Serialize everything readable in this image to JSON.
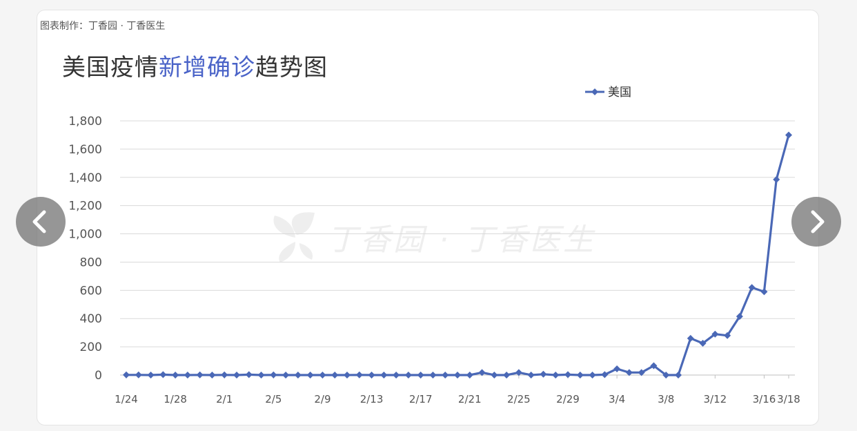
{
  "header": {
    "credit": "图表制作：丁香园 · 丁香医生",
    "title_part1": "美国疫情",
    "title_highlight": "新增确诊",
    "title_part2": "趋势图"
  },
  "watermark": "丁香园 · 丁香医生",
  "colors": {
    "series": "#4a68b6",
    "title_highlight": "#4a63c8",
    "grid": "#d9d9d9",
    "nav_button": "#6e6e6e"
  },
  "nav": {
    "prev_icon": "chevron-left-icon",
    "next_icon": "chevron-right-icon"
  },
  "chart_data": {
    "type": "line",
    "title": "美国疫情新增确诊趋势图",
    "xlabel": "",
    "ylabel": "",
    "ylim": [
      0,
      1800
    ],
    "yticks": [
      0,
      200,
      400,
      600,
      800,
      1000,
      1200,
      1400,
      1600,
      1800
    ],
    "ytick_labels": [
      "0",
      "200",
      "400",
      "600",
      "800",
      "1,000",
      "1,200",
      "1,400",
      "1,600",
      "1,800"
    ],
    "grid": true,
    "legend_position": "top-right",
    "x": [
      "1/24",
      "1/25",
      "1/26",
      "1/27",
      "1/28",
      "1/29",
      "1/30",
      "1/31",
      "2/1",
      "2/2",
      "2/3",
      "2/4",
      "2/5",
      "2/6",
      "2/7",
      "2/8",
      "2/9",
      "2/10",
      "2/11",
      "2/12",
      "2/13",
      "2/14",
      "2/15",
      "2/16",
      "2/17",
      "2/18",
      "2/19",
      "2/20",
      "2/21",
      "2/22",
      "2/23",
      "2/24",
      "2/25",
      "2/26",
      "2/27",
      "2/28",
      "2/29",
      "3/1",
      "3/2",
      "3/3",
      "3/4",
      "3/5",
      "3/6",
      "3/7",
      "3/8",
      "3/9",
      "3/10",
      "3/11",
      "3/12",
      "3/13",
      "3/14",
      "3/15",
      "3/16",
      "3/17",
      "3/18"
    ],
    "xtick_labels": [
      "1/24",
      "1/28",
      "2/1",
      "2/5",
      "2/9",
      "2/13",
      "2/17",
      "2/21",
      "2/25",
      "2/29",
      "3/4",
      "3/8",
      "3/12",
      "3/16",
      "3/18"
    ],
    "series": [
      {
        "name": "美国",
        "values": [
          1,
          1,
          0,
          3,
          0,
          0,
          1,
          0,
          1,
          0,
          3,
          0,
          1,
          0,
          0,
          0,
          0,
          0,
          0,
          1,
          0,
          0,
          0,
          0,
          0,
          0,
          0,
          0,
          0,
          18,
          0,
          0,
          18,
          0,
          6,
          0,
          3,
          0,
          0,
          3,
          44,
          18,
          18,
          66,
          0,
          0,
          260,
          225,
          290,
          280,
          415,
          620,
          590,
          1385,
          1700
        ]
      }
    ]
  }
}
